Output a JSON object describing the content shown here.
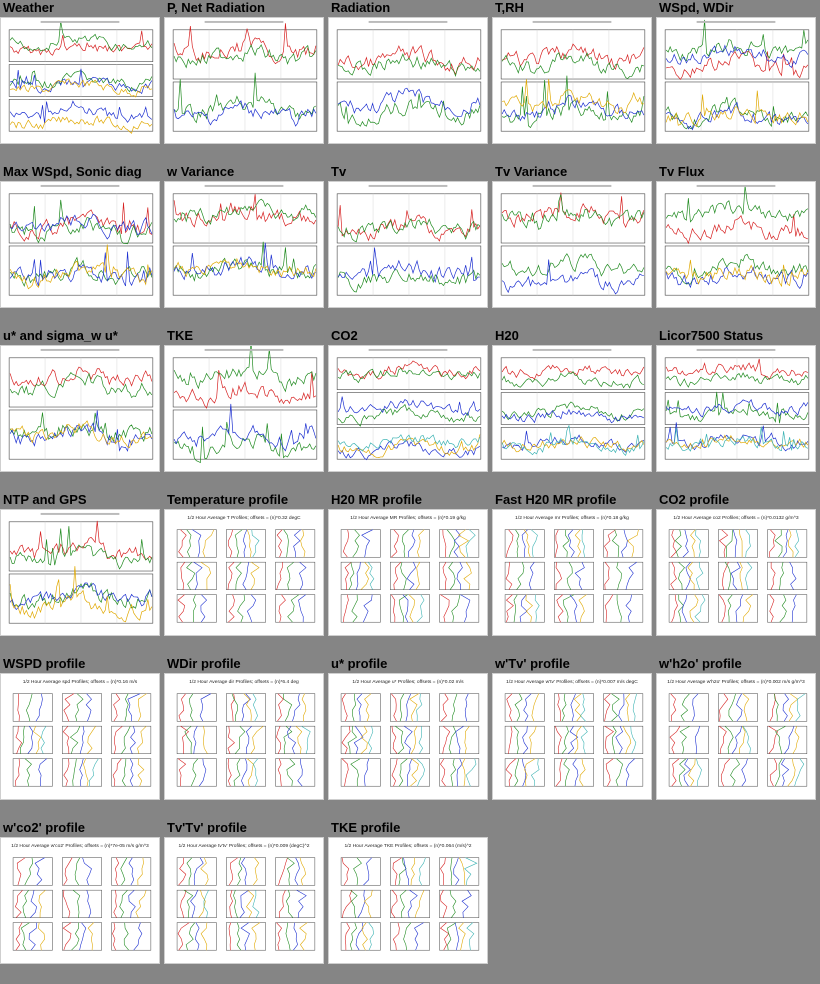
{
  "page": {
    "background": "#858585",
    "thumbnails": [
      {
        "title": "Weather",
        "kind": "ts3"
      },
      {
        "title": "P, Net Radiation",
        "kind": "ts2"
      },
      {
        "title": "Radiation",
        "kind": "ts2"
      },
      {
        "title": "T,RH",
        "kind": "ts2"
      },
      {
        "title": "WSpd, WDir",
        "kind": "ts2"
      },
      {
        "title": "Max WSpd, Sonic diag",
        "kind": "ts2"
      },
      {
        "title": "w Variance",
        "kind": "ts2"
      },
      {
        "title": "Tv",
        "kind": "ts2"
      },
      {
        "title": "Tv Variance",
        "kind": "ts2"
      },
      {
        "title": "Tv Flux",
        "kind": "ts2"
      },
      {
        "title": "u* and sigma_w u*",
        "kind": "ts2"
      },
      {
        "title": "TKE",
        "kind": "ts2"
      },
      {
        "title": "CO2",
        "kind": "ts3"
      },
      {
        "title": "H20",
        "kind": "ts3"
      },
      {
        "title": "Licor7500 Status",
        "kind": "ts3"
      },
      {
        "title": "NTP and GPS",
        "kind": "ts2"
      },
      {
        "title": "Temperature profile",
        "kind": "prof",
        "subtitle": "1/2 Hour Average T Profiles; offsets = (n)*0.32 degC"
      },
      {
        "title": "H20 MR profile",
        "kind": "prof",
        "subtitle": "1/2 Hour Average MR Profiles; offsets = (n)*0.19 g/kg"
      },
      {
        "title": "Fast H20 MR profile",
        "kind": "prof",
        "subtitle": "1/2 Hour Average mr Profiles; offsets = (n)*0.18 g/kg"
      },
      {
        "title": "CO2 profile",
        "kind": "prof",
        "subtitle": "1/2 Hour Average co2 Profiles; offsets = (n)*0.0132 g/m^3"
      },
      {
        "title": "WSPD profile",
        "kind": "prof",
        "subtitle": "1/2 Hour Average spd Profiles; offsets = (n)*0.16 m/s"
      },
      {
        "title": "WDir profile",
        "kind": "prof",
        "subtitle": "1/2 Hour Average dir Profiles; offsets = (n)*6.4 deg"
      },
      {
        "title": "u* profile",
        "kind": "prof",
        "subtitle": "1/2 Hour Average u* Profiles; offsets = (n)*0.02 m/s"
      },
      {
        "title": "w'Tv' profile",
        "kind": "prof",
        "subtitle": "1/2 Hour Average w'tv' Profiles; offsets = (n)*0.007 m/s degC"
      },
      {
        "title": "w'h2o' profile",
        "kind": "prof",
        "subtitle": "1/2 Hour Average w'h2o' Profiles; offsets = (n)*0.002 m/s g/m^3"
      },
      {
        "title": "w'co2' profile",
        "kind": "prof",
        "subtitle": "1/2 Hour Average w'co2' Profiles; offsets = (n)*7e-05 m/s g/m^3"
      },
      {
        "title": "Tv'Tv' profile",
        "kind": "prof",
        "subtitle": "1/2 Hour Average tv'tv' Profiles; offsets = (n)*0.009 (degC)^2"
      },
      {
        "title": "TKE profile",
        "kind": "prof",
        "subtitle": "1/2 Hour Average TKE Profiles; offsets = (n)*0.064 (m/s)^2"
      }
    ]
  }
}
